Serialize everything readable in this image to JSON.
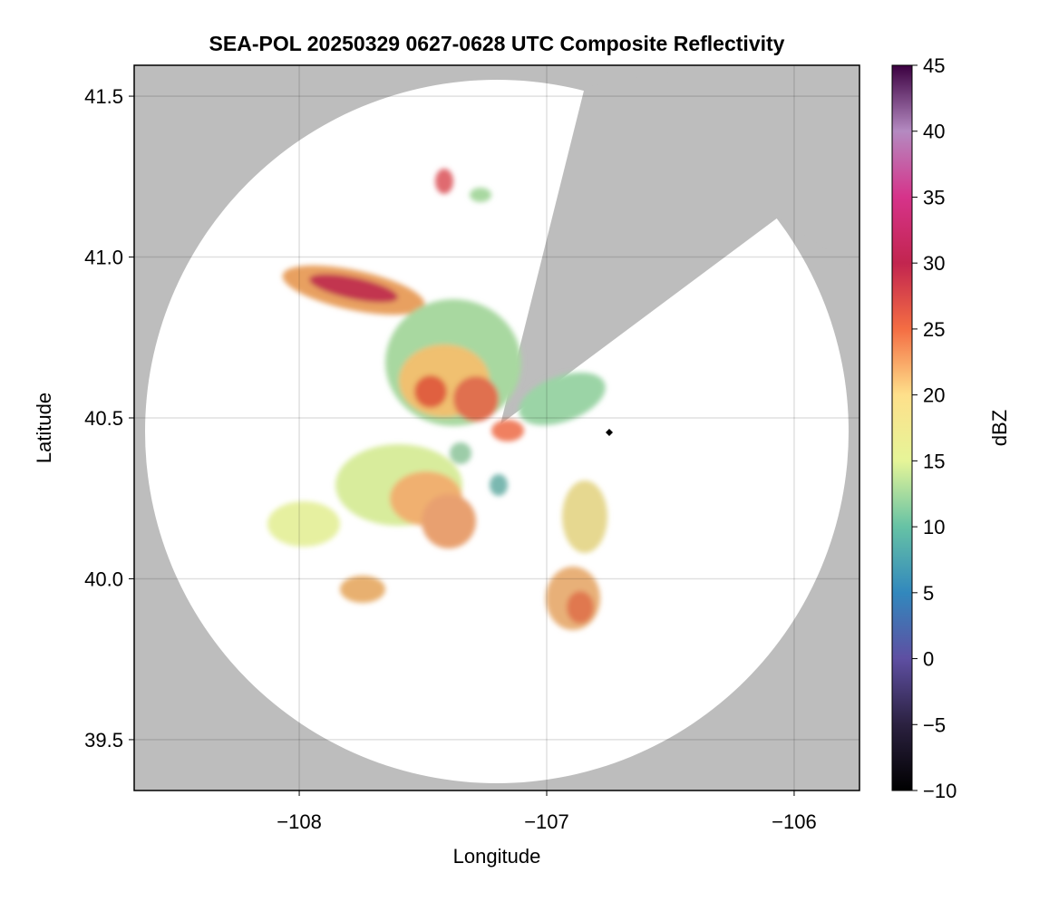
{
  "chart_data": {
    "type": "heatmap",
    "title": "SEA-POL 20250329 0627-0628 UTC Composite Reflectivity",
    "x_label": "Longitude",
    "y_label": "Latitude",
    "xlim": [
      -108.667,
      -105.736
    ],
    "xticks": [
      {
        "value": -108,
        "label": "−108"
      },
      {
        "value": -107,
        "label": "−107"
      },
      {
        "value": -106,
        "label": "−106"
      }
    ],
    "ylim": [
      39.342,
      41.596
    ],
    "yticks": [
      {
        "value": 39.5,
        "label": "39.5"
      },
      {
        "value": 40,
        "label": "40.0"
      },
      {
        "value": 40.5,
        "label": "40.5"
      },
      {
        "value": 41,
        "label": "41.0"
      },
      {
        "value": 41.5,
        "label": "41.5"
      }
    ],
    "grid": true,
    "colorbar": {
      "label": "dBZ",
      "lim": [
        -10,
        45
      ],
      "ticks": [
        {
          "value": -10,
          "label": "−10"
        },
        {
          "value": -5,
          "label": "−5"
        },
        0,
        5,
        10,
        15,
        20,
        25,
        30,
        35,
        40,
        45
      ],
      "colors": [
        "#000000",
        "#2b2140",
        "#5e4fa2",
        "#3288bd",
        "#66c2a5",
        "#e6f598",
        "#fee08b",
        "#f46d43",
        "#c2254f",
        "#d6338a",
        "#b48ac1",
        "#3b0040"
      ]
    }
  }
}
